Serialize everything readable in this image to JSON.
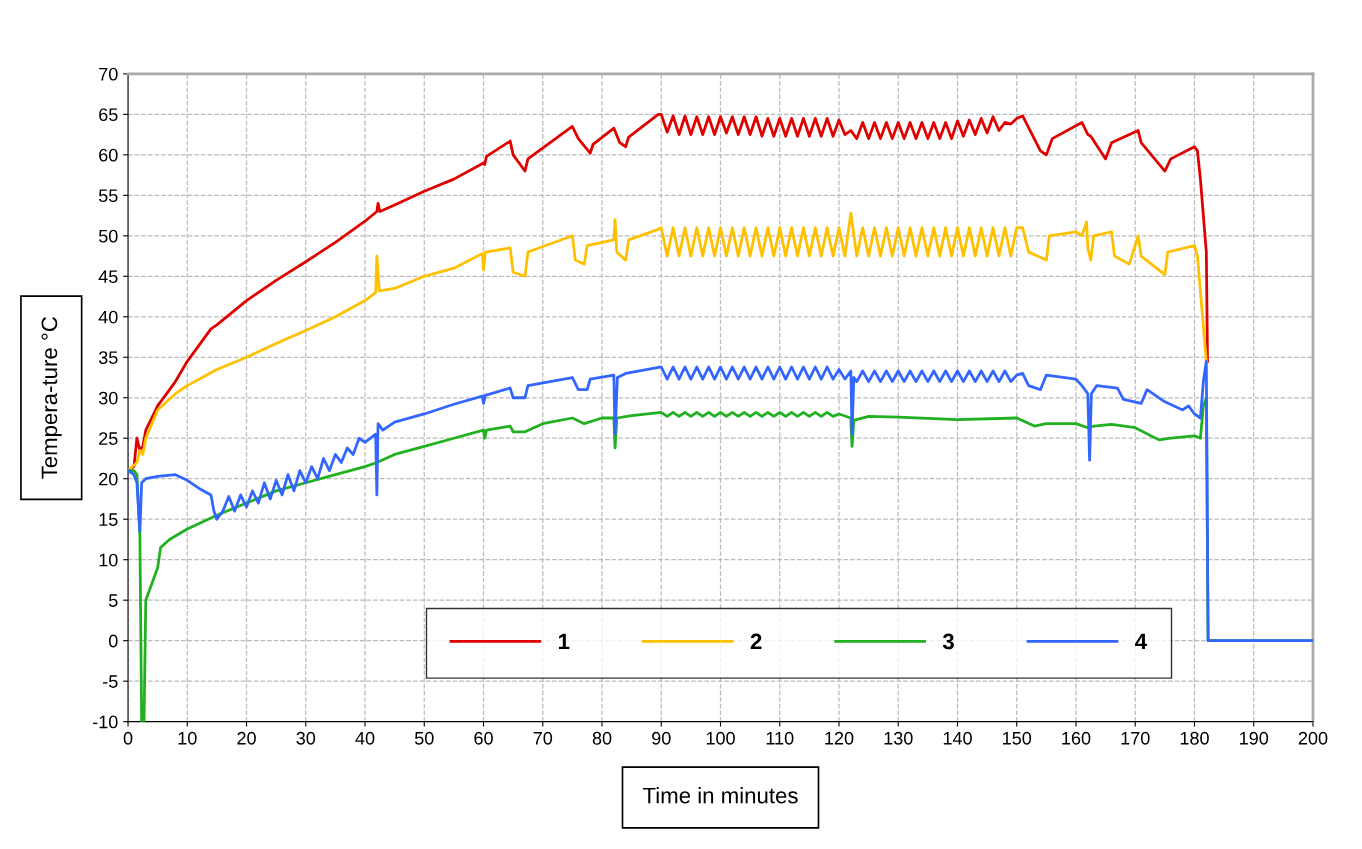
{
  "chart_data": {
    "type": "line",
    "xlabel": "Time in minutes",
    "ylabel": "Tempera-ture °C",
    "xlim": [
      0,
      200
    ],
    "xticks": [
      0,
      10,
      20,
      30,
      40,
      50,
      60,
      70,
      80,
      90,
      100,
      110,
      120,
      130,
      140,
      150,
      160,
      170,
      180,
      190,
      200
    ],
    "ylim": [
      -10,
      70
    ],
    "yticks": [
      -10,
      -5,
      0,
      5,
      10,
      15,
      20,
      25,
      30,
      35,
      40,
      45,
      50,
      55,
      60,
      65,
      70
    ],
    "grid": true,
    "legend": "bottom",
    "marker": "none",
    "line_style": "solid",
    "series": [
      {
        "name": "1",
        "color": "#e00000",
        "x": [
          0,
          1,
          1.5,
          2,
          2.5,
          3,
          5,
          8,
          10,
          14,
          15,
          20,
          25,
          30,
          35,
          40,
          42,
          42.2,
          42.5,
          45,
          50,
          55,
          60,
          60.2,
          60.5,
          64.5,
          65,
          67,
          67.5,
          75,
          76,
          78,
          78.5,
          82,
          83,
          84,
          84.5,
          89.5,
          90,
          91,
          92,
          93,
          94,
          95,
          96,
          97,
          98,
          99,
          100,
          101,
          102,
          103,
          104,
          105,
          106,
          107,
          108,
          109,
          110,
          111,
          112,
          113,
          114,
          115,
          116,
          117,
          118,
          119,
          120,
          121,
          122,
          123,
          124,
          125,
          126,
          127,
          128,
          129,
          130,
          131,
          132,
          133,
          134,
          135,
          136,
          137,
          138,
          139,
          140,
          141,
          142,
          143,
          144,
          145,
          146,
          147,
          148,
          149,
          150,
          151,
          154,
          155,
          156,
          161,
          162,
          162.5,
          165,
          166,
          170.5,
          171,
          175,
          176,
          180,
          180.5,
          181,
          182,
          182.2
        ],
        "values": [
          21,
          21.5,
          25,
          23.5,
          24,
          26,
          29,
          32,
          34.5,
          38.5,
          39,
          42,
          44.5,
          46.8,
          49.2,
          51.8,
          53,
          54,
          53,
          53.8,
          55.5,
          57,
          59,
          58.8,
          59.8,
          61.7,
          60,
          58,
          59.5,
          63.5,
          62,
          60.2,
          61.3,
          63.3,
          61.5,
          61,
          62.2,
          65,
          65,
          62.8,
          64.8,
          62.5,
          64.8,
          62.5,
          64.7,
          62.5,
          64.7,
          62.5,
          64.7,
          62.7,
          64.7,
          62.5,
          64.7,
          62.5,
          64.7,
          62.3,
          64.5,
          62.3,
          64.5,
          62.3,
          64.5,
          62.3,
          64.5,
          62.3,
          64.5,
          62.3,
          64.5,
          62.3,
          64.3,
          62.5,
          63,
          62,
          64,
          62,
          64,
          62,
          64,
          62,
          64,
          62,
          64,
          62,
          64,
          62,
          64,
          62,
          64,
          62,
          64.2,
          62.3,
          64.3,
          62.5,
          64.5,
          62.7,
          64.7,
          63,
          64,
          63.8,
          64.5,
          64.8,
          60.5,
          60,
          62,
          64,
          62.5,
          62.3,
          59.5,
          61.5,
          63,
          61.5,
          58,
          59.5,
          61,
          60.5,
          57,
          48,
          34.5
        ]
      },
      {
        "name": "2",
        "color": "#ffc000",
        "x": [
          0,
          1.5,
          2,
          2.5,
          3,
          5,
          8,
          10,
          15,
          20,
          25,
          30,
          35,
          40,
          41.8,
          42,
          42.4,
          45,
          50,
          55,
          59.8,
          60,
          60.3,
          64.5,
          65,
          67,
          67.5,
          75,
          75.5,
          77,
          77.5,
          82,
          82.2,
          82.5,
          84,
          84.5,
          89.5,
          90,
          91,
          92,
          93,
          94,
          95,
          96,
          97,
          98,
          99,
          100,
          101,
          102,
          103,
          104,
          105,
          106,
          107,
          108,
          109,
          110,
          111,
          112,
          113,
          114,
          115,
          116,
          117,
          118,
          119,
          120,
          121,
          122,
          123,
          124,
          125,
          126,
          127,
          128,
          129,
          130,
          131,
          132,
          133,
          134,
          135,
          136,
          137,
          138,
          139,
          140,
          141,
          142,
          143,
          144,
          145,
          146,
          147,
          148,
          149,
          150,
          151,
          152,
          155,
          155.5,
          160,
          161,
          161.8,
          162,
          162.5,
          163,
          166,
          166.5,
          169,
          170.5,
          171,
          175,
          175.5,
          180,
          180.5,
          182
        ],
        "values": [
          21,
          22,
          23.5,
          23,
          25,
          28.5,
          30.5,
          31.5,
          33.5,
          35,
          36.7,
          38.3,
          40,
          42,
          43,
          47.5,
          43.2,
          43.5,
          45,
          46,
          47.8,
          45.8,
          48,
          48.5,
          45.5,
          45,
          48,
          50,
          47,
          46.5,
          48.8,
          49.5,
          52,
          48,
          47,
          49.5,
          50.8,
          51,
          47.5,
          51,
          47.5,
          51,
          47.5,
          51,
          47.5,
          51,
          47.5,
          51,
          47.5,
          51,
          47.5,
          51,
          47.5,
          51,
          47.5,
          51,
          47.5,
          51,
          47.5,
          51,
          47.5,
          51,
          47.5,
          51,
          47.5,
          51,
          47.5,
          51,
          47.5,
          52.8,
          47.5,
          51,
          47.5,
          51,
          47.5,
          51,
          47.5,
          51,
          47.5,
          51,
          47.5,
          51,
          47.5,
          51,
          47.5,
          51,
          47.5,
          51,
          47.5,
          51,
          47.5,
          51,
          47.5,
          51,
          47.5,
          51,
          47.5,
          51,
          51,
          48,
          47,
          50,
          50.5,
          50,
          51.7,
          48.5,
          47,
          50,
          50.5,
          47.5,
          46.5,
          50,
          47.5,
          45.2,
          48,
          48.8,
          47.5,
          34.5
        ]
      },
      {
        "name": "3",
        "color": "#20b020",
        "x": [
          0,
          1,
          1.5,
          2,
          2.3,
          2.7,
          3,
          4,
          5,
          5.5,
          7,
          10,
          15,
          20,
          25,
          30,
          35,
          40,
          42,
          45,
          50,
          55,
          60,
          60.2,
          60.5,
          64.5,
          65,
          67,
          70,
          75,
          77,
          80,
          82,
          82.2,
          82.5,
          85,
          90,
          91,
          92,
          93,
          94,
          95,
          96,
          97,
          98,
          99,
          100,
          101,
          102,
          103,
          104,
          105,
          106,
          107,
          108,
          109,
          110,
          111,
          112,
          113,
          114,
          115,
          116,
          117,
          118,
          119,
          120,
          122,
          122.2,
          122.5,
          125,
          130,
          140,
          150,
          153,
          155,
          160,
          162,
          163,
          166,
          170,
          174,
          176,
          180,
          181,
          181.5,
          182,
          182.3,
          200
        ],
        "values": [
          21,
          21,
          20.5,
          13,
          -10,
          -10,
          5,
          7,
          9,
          11.5,
          12.5,
          13.8,
          15.5,
          17,
          18.5,
          19.5,
          20.5,
          21.5,
          22,
          23,
          24,
          25,
          26,
          25,
          26,
          26.5,
          25.8,
          25.8,
          26.8,
          27.5,
          26.8,
          27.5,
          27.5,
          23.8,
          27.5,
          27.8,
          28.2,
          27.7,
          28.2,
          27.7,
          28.2,
          27.7,
          28.2,
          27.7,
          28.2,
          27.7,
          28.2,
          27.7,
          28.2,
          27.7,
          28.2,
          27.7,
          28.2,
          27.7,
          28.2,
          27.7,
          28.2,
          27.7,
          28.2,
          27.7,
          28.2,
          27.7,
          28.2,
          27.7,
          28.2,
          27.7,
          28,
          27.5,
          24,
          27.2,
          27.7,
          27.6,
          27.3,
          27.5,
          26.5,
          26.8,
          26.8,
          26.3,
          26.5,
          26.7,
          26.3,
          24.8,
          25,
          25.3,
          25,
          29,
          30,
          0,
          0
        ]
      },
      {
        "name": "4",
        "color": "#3366ff",
        "x": [
          0,
          1,
          1.5,
          2,
          2.3,
          3,
          5,
          8,
          10,
          12,
          14,
          14.5,
          15,
          16,
          17,
          18,
          19,
          20,
          21,
          22,
          23,
          24,
          25,
          26,
          27,
          28,
          29,
          30,
          31,
          32,
          33,
          34,
          35,
          36,
          37,
          38,
          39,
          40,
          41.8,
          42,
          42.2,
          43,
          45,
          50,
          55,
          59.8,
          60,
          60.3,
          64.5,
          65,
          67,
          67.5,
          75,
          76,
          77.5,
          78,
          82,
          82.2,
          82.6,
          84,
          90,
          91,
          92,
          93,
          94,
          95,
          96,
          97,
          98,
          99,
          100,
          101,
          102,
          103,
          104,
          105,
          106,
          107,
          108,
          109,
          110,
          111,
          112,
          113,
          114,
          115,
          116,
          117,
          118,
          119,
          120,
          121,
          122,
          122.2,
          122.5,
          123,
          124,
          125,
          126,
          127,
          128,
          129,
          130,
          131,
          132,
          133,
          134,
          135,
          136,
          137,
          138,
          139,
          140,
          141,
          142,
          143,
          144,
          145,
          146,
          147,
          148,
          149,
          150,
          151,
          152,
          154,
          155,
          160,
          161,
          162,
          162.3,
          162.6,
          163.5,
          167,
          168,
          171,
          172,
          175,
          178,
          179,
          180,
          181,
          181.5,
          182,
          182.3,
          200
        ],
        "values": [
          21,
          20.5,
          19.5,
          13.5,
          19.5,
          20,
          20.3,
          20.5,
          19.8,
          18.8,
          18,
          16,
          15,
          16,
          17.8,
          16,
          18,
          16.5,
          18.5,
          17,
          19.5,
          17.5,
          19.8,
          18,
          20.5,
          18.5,
          21,
          19.5,
          21.5,
          20,
          22.5,
          21,
          23,
          22,
          23.8,
          23,
          25,
          24.5,
          25.5,
          18,
          26.8,
          26,
          27,
          28,
          29.2,
          30.2,
          29.3,
          30.3,
          31.2,
          30,
          30,
          31.5,
          32.5,
          31,
          31,
          32.3,
          32.8,
          25.5,
          32.5,
          33,
          33.8,
          32.3,
          33.8,
          32.3,
          33.8,
          32.3,
          33.8,
          32.3,
          33.8,
          32.3,
          33.8,
          32.3,
          33.8,
          32.3,
          33.8,
          32.3,
          33.8,
          32.3,
          33.8,
          32.3,
          33.8,
          32.3,
          33.8,
          32.3,
          33.8,
          32.3,
          33.8,
          32.3,
          33.8,
          32.3,
          33.5,
          32.3,
          33.3,
          25.5,
          32.5,
          32,
          33.3,
          32,
          33.3,
          32,
          33.3,
          32,
          33.3,
          32,
          33.3,
          32,
          33.3,
          32,
          33.3,
          32,
          33.3,
          32,
          33.3,
          32,
          33.3,
          32,
          33.3,
          32,
          33.3,
          32,
          33.3,
          32,
          32.8,
          33,
          31.5,
          31,
          32.8,
          32.3,
          31.5,
          30.5,
          22.3,
          30.5,
          31.5,
          31.2,
          29.8,
          29.3,
          31,
          29.5,
          28.5,
          29,
          28,
          27.5,
          32,
          34.5,
          0,
          0
        ]
      }
    ]
  }
}
